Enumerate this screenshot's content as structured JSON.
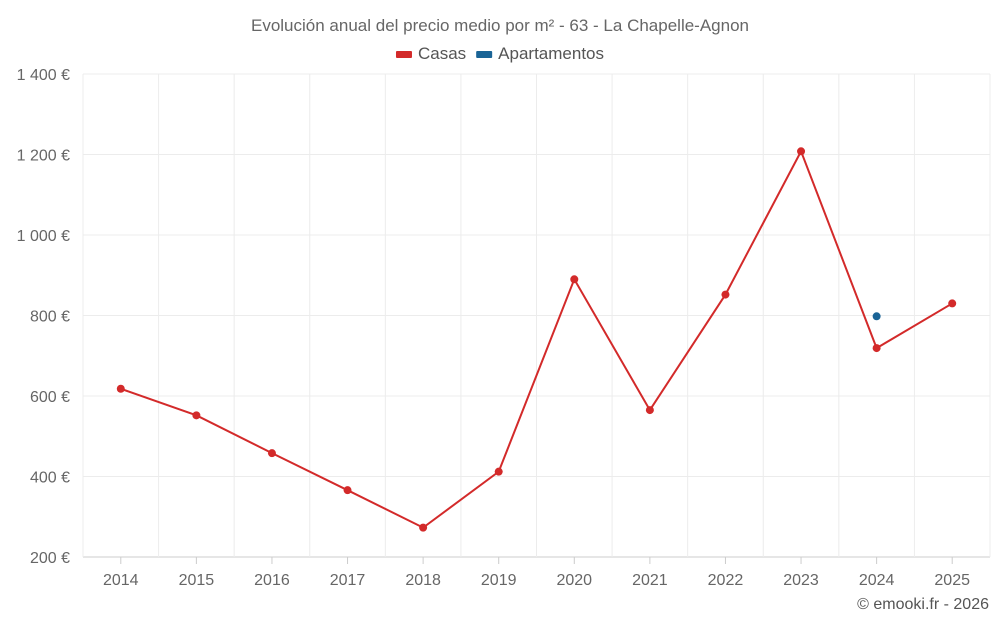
{
  "chart_data": {
    "type": "line",
    "title": "Evolución anual del precio medio por m² - 63 - La Chapelle-Agnon",
    "categories": [
      "2014",
      "2015",
      "2016",
      "2017",
      "2018",
      "2019",
      "2020",
      "2021",
      "2022",
      "2023",
      "2024",
      "2025"
    ],
    "series": [
      {
        "name": "Casas",
        "color": "#d32a2a",
        "values": [
          618,
          552,
          458,
          366,
          273,
          412,
          890,
          565,
          852,
          1208,
          719,
          830
        ]
      },
      {
        "name": "Apartamentos",
        "color": "#1a6496",
        "values": [
          null,
          null,
          null,
          null,
          null,
          null,
          null,
          null,
          null,
          null,
          798,
          null
        ]
      }
    ],
    "yticks": [
      "200 €",
      "400 €",
      "600 €",
      "800 €",
      "1 000 €",
      "1 200 €",
      "1 400 €"
    ],
    "yticks_values": [
      200,
      400,
      600,
      800,
      1000,
      1200,
      1400
    ],
    "ylim": [
      200,
      1400
    ],
    "xlabel": "",
    "ylabel": "",
    "legend": "top-center",
    "grid": true
  },
  "credit": "© emooki.fr - 2026"
}
